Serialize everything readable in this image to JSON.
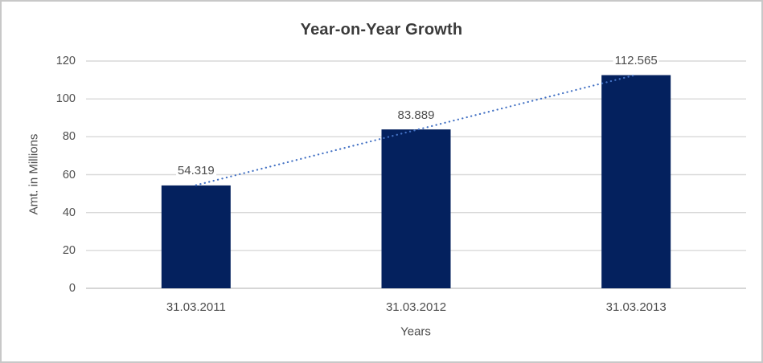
{
  "window": {
    "background": "#ffffff",
    "border_color": "#c8c8c8"
  },
  "chart_data": {
    "type": "bar",
    "title": "Year-on-Year Growth",
    "categories": [
      "31.03.2011",
      "31.03.2012",
      "31.03.2013"
    ],
    "values": [
      54.319,
      83.889,
      112.565
    ],
    "value_labels": [
      "54.319",
      "83.889",
      "112.565"
    ],
    "xlabel": "Years",
    "ylabel": "Amt. in Millions",
    "ylim": [
      0,
      120
    ],
    "yticks": [
      0,
      20,
      40,
      60,
      80,
      100,
      120
    ],
    "grid": true,
    "legend": "none",
    "bar_color": "#04215e",
    "gridline_color": "#d9d9d9",
    "axis_line_color": "#c9c9c9",
    "tick_text_color": "#4d4d4d",
    "title_color": "#3b3b3b",
    "trendline": {
      "type": "linear",
      "style": "dotted",
      "color": "#4472c4"
    }
  }
}
